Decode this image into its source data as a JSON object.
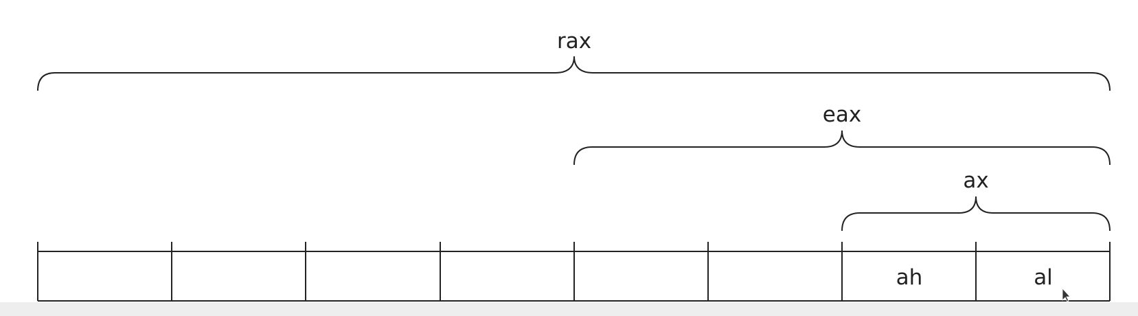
{
  "labels": {
    "rax": "rax",
    "eax": "eax",
    "ax": "ax",
    "ah": "ah",
    "al": "al"
  },
  "colors": {
    "stroke": "#222222",
    "background": "#ffffff",
    "band": "#eeeeee"
  },
  "register_bytes": 8
}
